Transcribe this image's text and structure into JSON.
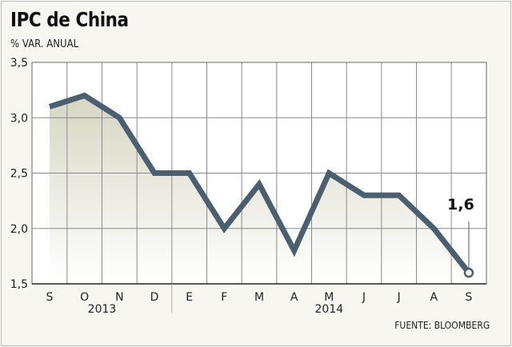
{
  "chart_data": {
    "type": "line",
    "title": "IPC de China",
    "subtitle": "% VAR. ANUAL",
    "source": "FUENTE: BLOOMBERG",
    "categories": [
      "S",
      "O",
      "N",
      "D",
      "E",
      "F",
      "M",
      "A",
      "M",
      "J",
      "J",
      "A",
      "S"
    ],
    "year_labels": [
      {
        "label": "2013",
        "span": [
          0,
          3
        ]
      },
      {
        "label": "2014",
        "span": [
          4,
          12
        ]
      }
    ],
    "series": [
      {
        "values": [
          3.1,
          3.2,
          3.0,
          2.5,
          2.5,
          2.0,
          2.4,
          1.8,
          2.5,
          2.3,
          2.3,
          2.0,
          1.6
        ]
      }
    ],
    "last_value_label": "1,6",
    "y_ticks": [
      "1,5",
      "2,0",
      "2,5",
      "3,0",
      "3,5"
    ],
    "ylim": [
      1.5,
      3.5
    ],
    "grid": true,
    "colors": {
      "line": "#4a5f6f",
      "area_top": "#d6d6c4",
      "background": "#f7f6f0",
      "grid": "#888888"
    }
  }
}
